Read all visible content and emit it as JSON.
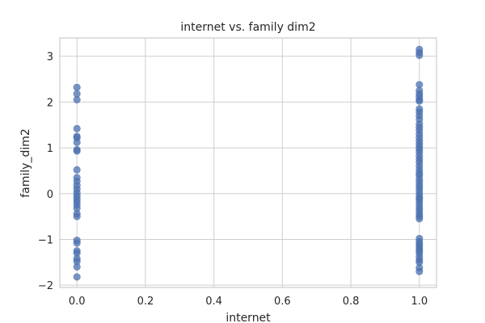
{
  "chart_data": {
    "type": "scatter",
    "title": "internet vs. family dim2",
    "xlabel": "internet",
    "ylabel": "family_dim2",
    "xlim": [
      -0.05,
      1.05
    ],
    "ylim": [
      -2.05,
      3.4
    ],
    "xticks": [
      0.0,
      0.2,
      0.4,
      0.6,
      0.8,
      1.0
    ],
    "xtick_labels": [
      "0.0",
      "0.2",
      "0.4",
      "0.6",
      "0.8",
      "1.0"
    ],
    "yticks": [
      -2,
      -1,
      0,
      1,
      2,
      3
    ],
    "ytick_labels": [
      "−2",
      "−1",
      "0",
      "1",
      "2",
      "3"
    ],
    "grid": true,
    "series": [
      {
        "color": "#4c72b0",
        "points": [
          [
            0,
            2.32
          ],
          [
            0,
            2.18
          ],
          [
            0,
            2.05
          ],
          [
            0,
            1.42
          ],
          [
            0,
            1.25
          ],
          [
            0,
            1.22
          ],
          [
            0,
            1.12
          ],
          [
            0,
            0.96
          ],
          [
            0,
            0.93
          ],
          [
            0,
            0.52
          ],
          [
            0,
            0.35
          ],
          [
            0,
            0.27
          ],
          [
            0,
            0.18
          ],
          [
            0,
            0.1
          ],
          [
            0,
            0.02
          ],
          [
            0,
            -0.05
          ],
          [
            0,
            -0.12
          ],
          [
            0,
            -0.18
          ],
          [
            0,
            -0.25
          ],
          [
            0,
            -0.32
          ],
          [
            0,
            -0.44
          ],
          [
            0,
            -0.5
          ],
          [
            0,
            -1.02
          ],
          [
            0,
            -1.08
          ],
          [
            0,
            -1.25
          ],
          [
            0,
            -1.3
          ],
          [
            0,
            -1.42
          ],
          [
            0,
            -1.48
          ],
          [
            0,
            -1.6
          ],
          [
            0,
            -1.82
          ],
          [
            1,
            3.15
          ],
          [
            1,
            3.08
          ],
          [
            1,
            3.02
          ],
          [
            1,
            2.38
          ],
          [
            1,
            2.25
          ],
          [
            1,
            2.18
          ],
          [
            1,
            2.12
          ],
          [
            1,
            2.05
          ],
          [
            1,
            2.02
          ],
          [
            1,
            1.85
          ],
          [
            1,
            1.78
          ],
          [
            1,
            1.7
          ],
          [
            1,
            1.62
          ],
          [
            1,
            1.52
          ],
          [
            1,
            1.45
          ],
          [
            1,
            1.38
          ],
          [
            1,
            1.3
          ],
          [
            1,
            1.22
          ],
          [
            1,
            1.15
          ],
          [
            1,
            1.08
          ],
          [
            1,
            1.02
          ],
          [
            1,
            0.96
          ],
          [
            1,
            0.9
          ],
          [
            1,
            0.82
          ],
          [
            1,
            0.75
          ],
          [
            1,
            0.68
          ],
          [
            1,
            0.6
          ],
          [
            1,
            0.52
          ],
          [
            1,
            0.45
          ],
          [
            1,
            0.4
          ],
          [
            1,
            0.32
          ],
          [
            1,
            0.25
          ],
          [
            1,
            0.18
          ],
          [
            1,
            0.12
          ],
          [
            1,
            0.05
          ],
          [
            1,
            -0.02
          ],
          [
            1,
            -0.08
          ],
          [
            1,
            -0.12
          ],
          [
            1,
            -0.18
          ],
          [
            1,
            -0.25
          ],
          [
            1,
            -0.32
          ],
          [
            1,
            -0.38
          ],
          [
            1,
            -0.45
          ],
          [
            1,
            -0.5
          ],
          [
            1,
            -0.55
          ],
          [
            1,
            -0.98
          ],
          [
            1,
            -1.05
          ],
          [
            1,
            -1.1
          ],
          [
            1,
            -1.15
          ],
          [
            1,
            -1.2
          ],
          [
            1,
            -1.25
          ],
          [
            1,
            -1.3
          ],
          [
            1,
            -1.38
          ],
          [
            1,
            -1.45
          ],
          [
            1,
            -1.5
          ],
          [
            1,
            -1.62
          ],
          [
            1,
            -1.7
          ]
        ]
      }
    ]
  }
}
